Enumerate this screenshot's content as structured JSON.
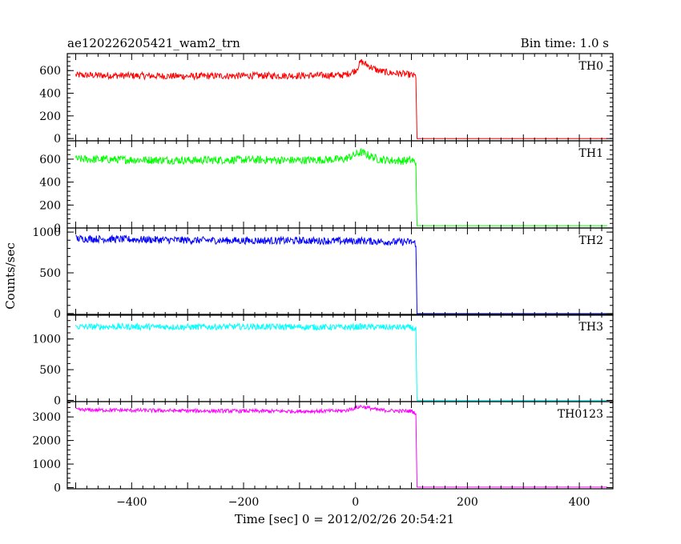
{
  "chart_data": {
    "type": "line",
    "title": "ae120226205421_wam2_trn",
    "subtitle": "Bin time: 1.0 s",
    "xlabel": "Time [sec] 0 = 2012/02/26 20:54:21",
    "ylabel": "Counts/sec",
    "xlim": [
      -515,
      460
    ],
    "x_ticks": [
      -400,
      -200,
      0,
      200,
      400
    ],
    "x_tick_labels": [
      "−400",
      "−200",
      "0",
      "200",
      "400"
    ],
    "grid": false,
    "drop_time": 110,
    "series": [
      {
        "name": "TH0",
        "color": "#ff0000",
        "ylim": [
          -20,
          750
        ],
        "y_ticks": [
          0,
          200,
          400,
          600
        ],
        "y_tick_labels": [
          "0",
          "200",
          "400",
          "600"
        ],
        "x": [
          -500,
          -400,
          -300,
          -200,
          -100,
          -20,
          0,
          10,
          20,
          40,
          60,
          80,
          100,
          108,
          110,
          115,
          200,
          300,
          400,
          450
        ],
        "y": [
          560,
          555,
          550,
          555,
          555,
          560,
          600,
          680,
          650,
          600,
          580,
          575,
          560,
          550,
          0,
          0,
          0,
          0,
          0,
          0
        ],
        "noise": 30
      },
      {
        "name": "TH1",
        "color": "#00ff00",
        "ylim": [
          0,
          760
        ],
        "y_ticks": [
          0,
          200,
          400,
          600
        ],
        "y_tick_labels": [
          "0",
          "200",
          "400",
          "600"
        ],
        "x": [
          -500,
          -400,
          -300,
          -200,
          -100,
          -20,
          0,
          10,
          20,
          40,
          60,
          80,
          100,
          108,
          110,
          115,
          200,
          300,
          400,
          450
        ],
        "y": [
          600,
          595,
          590,
          595,
          590,
          600,
          640,
          660,
          640,
          600,
          590,
          585,
          590,
          570,
          20,
          20,
          20,
          20,
          20,
          20
        ],
        "noise": 35
      },
      {
        "name": "TH2",
        "color": "#0000ff",
        "ylim": [
          -20,
          1050
        ],
        "y_ticks": [
          0,
          500,
          1000
        ],
        "y_tick_labels": [
          "0",
          "500",
          "1000"
        ],
        "x": [
          -500,
          -400,
          -300,
          -200,
          -100,
          -20,
          0,
          10,
          20,
          40,
          60,
          80,
          100,
          108,
          110,
          115,
          200,
          300,
          400,
          450
        ],
        "y": [
          920,
          910,
          900,
          895,
          895,
          890,
          890,
          895,
          890,
          885,
          880,
          880,
          880,
          860,
          0,
          0,
          0,
          0,
          0,
          0
        ],
        "noise": 45
      },
      {
        "name": "TH3",
        "color": "#00ffff",
        "ylim": [
          -20,
          1400
        ],
        "y_ticks": [
          0,
          500,
          1000
        ],
        "y_tick_labels": [
          "0",
          "500",
          "1000"
        ],
        "x": [
          -500,
          -400,
          -300,
          -200,
          -100,
          -20,
          0,
          10,
          20,
          40,
          60,
          80,
          100,
          108,
          110,
          115,
          200,
          300,
          400,
          450
        ],
        "y": [
          1200,
          1200,
          1195,
          1200,
          1195,
          1190,
          1195,
          1200,
          1195,
          1195,
          1190,
          1190,
          1185,
          1150,
          0,
          0,
          0,
          0,
          0,
          0
        ],
        "noise": 50
      },
      {
        "name": "TH0123",
        "color": "#ff00ff",
        "ylim": [
          -50,
          3650
        ],
        "y_ticks": [
          0,
          1000,
          2000,
          3000
        ],
        "y_tick_labels": [
          "0",
          "1000",
          "2000",
          "3000"
        ],
        "x": [
          -500,
          -400,
          -300,
          -200,
          -100,
          -20,
          0,
          10,
          20,
          40,
          60,
          80,
          100,
          108,
          110,
          115,
          200,
          300,
          400,
          450
        ],
        "y": [
          3300,
          3280,
          3260,
          3250,
          3240,
          3260,
          3380,
          3450,
          3400,
          3300,
          3270,
          3250,
          3250,
          3150,
          20,
          20,
          20,
          20,
          20,
          20
        ],
        "noise": 80
      }
    ]
  }
}
